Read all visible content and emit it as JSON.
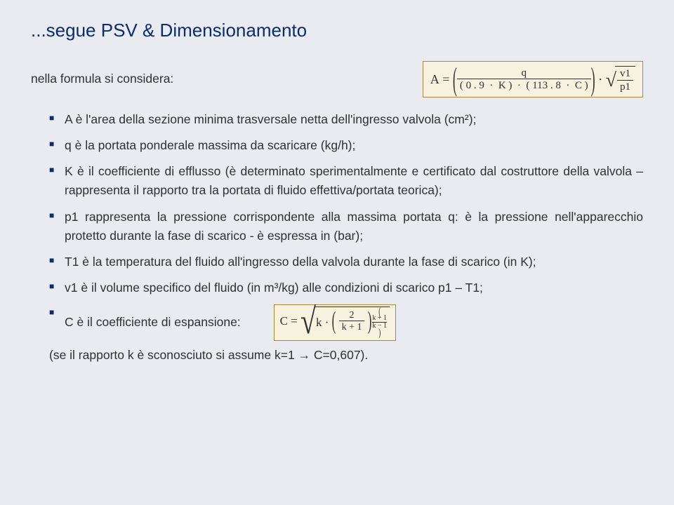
{
  "title": "...segue PSV & Dimensionamento",
  "intro": "nella formula si considera:",
  "formula_A": {
    "lhs": "A",
    "eq": "=",
    "num": "q",
    "den_a": "( 0 . 9",
    "den_k": "K )",
    "den_dot": "·",
    "den_b": "( 113 . 8",
    "den_c": "C )",
    "mid_dot": "·",
    "sq_num": "v1",
    "sq_den": "p1"
  },
  "bullets": [
    "A è l'area della sezione minima trasversale netta dell'ingresso valvola (cm²);",
    "q è la portata ponderale massima da scaricare (kg/h);",
    "K è il coefficiente di efflusso (è determinato sperimentalmente e certificato dal costruttore della valvola – rappresenta il rapporto tra la portata di fluido effettiva/portata teorica);",
    " p1 rappresenta la pressione corrispondente alla massima portata q: è la pressione nell'apparecchio protetto durante la fase di scarico - è espressa in (bar);",
    "T1 è la temperatura del fluido all'ingresso della valvola durante la fase di scarico (in K);",
    "v1 è il volume specifico del fluido (in m³/kg) alle condizioni di scarico p1 – T1;"
  ],
  "coeff_label": "C è il coefficiente di espansione:",
  "formula_C": {
    "lhs": "C",
    "eq": "=",
    "k": "k",
    "dot": "·",
    "inner_num": "2",
    "inner_den": "k + 1",
    "exp_num": "k + 1",
    "exp_den": "k − 1"
  },
  "footnote": "(se il rapporto k è sconosciuto si assume k=1 → C=0,607)."
}
